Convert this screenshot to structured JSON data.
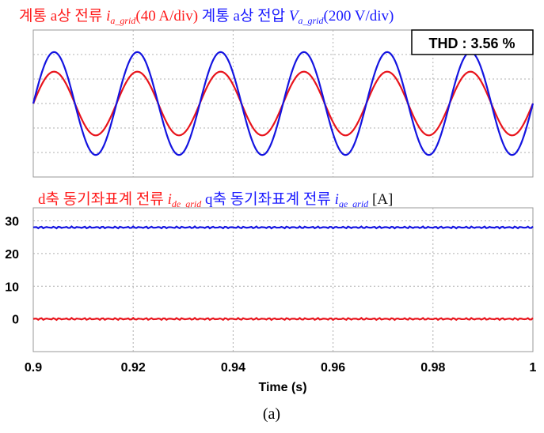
{
  "caption": "(a)",
  "chart_data": [
    {
      "type": "line",
      "title_parts": [
        {
          "text": "계통 a상 전류 ",
          "color": "#ff1a1a",
          "style": "plain"
        },
        {
          "text": "i",
          "color": "#ff1a1a",
          "style": "italic"
        },
        {
          "text": "a_grid",
          "color": "#ff1a1a",
          "style": "sub"
        },
        {
          "text": "(40 A/div)",
          "color": "#ff1a1a",
          "style": "plain"
        },
        {
          "text": "  계통 a상 전압 ",
          "color": "#1a1aff",
          "style": "plain"
        },
        {
          "text": "V",
          "color": "#1a1aff",
          "style": "italic"
        },
        {
          "text": "a_grid",
          "color": "#1a1aff",
          "style": "sub"
        },
        {
          "text": "(200 V/div)",
          "color": "#1a1aff",
          "style": "plain"
        }
      ],
      "annotation": "THD : 3.56 %",
      "x_range": [
        0.9,
        1.0
      ],
      "y_divisions": 6,
      "grid": true,
      "series": [
        {
          "color": "#e8141c",
          "waveform": "sine",
          "frequency_hz": 60,
          "amplitude_div": 1.3,
          "offset_div": 0,
          "phase_deg": 0
        },
        {
          "color": "#1414e0",
          "waveform": "sine",
          "frequency_hz": 60,
          "amplitude_div": 2.1,
          "offset_div": 0,
          "phase_deg": 0
        }
      ]
    },
    {
      "type": "line",
      "title_parts": [
        {
          "text": "d축 동기좌표계 전류 ",
          "color": "#ff1a1a",
          "style": "plain"
        },
        {
          "text": "i",
          "color": "#ff1a1a",
          "style": "italic"
        },
        {
          "text": "de_grid",
          "color": "#ff1a1a",
          "style": "sub"
        },
        {
          "text": "  q축 동기좌표계 전류 ",
          "color": "#1a1aff",
          "style": "plain"
        },
        {
          "text": "i",
          "color": "#1a1aff",
          "style": "italic"
        },
        {
          "text": "qe_grid",
          "color": "#1a1aff",
          "style": "sub"
        },
        {
          "text": " [A]",
          "color": "#111111",
          "style": "plain"
        }
      ],
      "xlabel": "Time (s)",
      "x_range": [
        0.9,
        1.0
      ],
      "y_range": [
        -10,
        34
      ],
      "x_ticks": [
        0.9,
        0.92,
        0.94,
        0.96,
        0.98,
        1
      ],
      "y_ticks": [
        0,
        10,
        20,
        30
      ],
      "grid": true,
      "series": [
        {
          "color": "#1414e0",
          "value": 28
        },
        {
          "color": "#e8141c",
          "value": 0
        }
      ]
    }
  ]
}
